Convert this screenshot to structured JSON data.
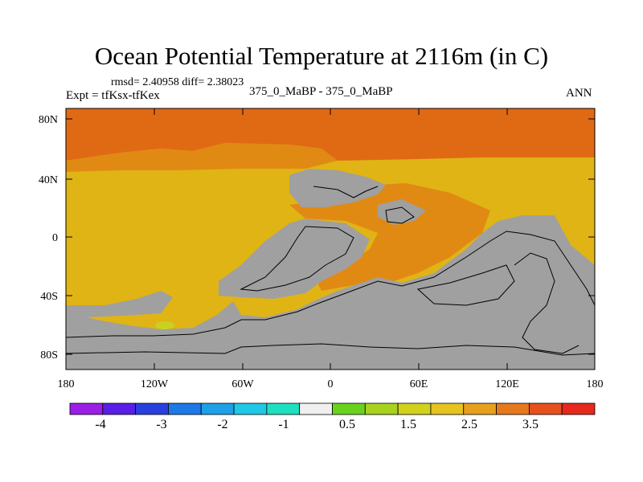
{
  "title": "Ocean Potential Temperature at 2116m (in C)",
  "stats": "rmsd= 2.40958 diff= 2.38023",
  "expt": "Expt = tfKsx-tfKex",
  "case": "375_0_MaBP - 375_0_MaBP",
  "season": "ANN",
  "lat_labels": [
    "80N",
    "40N",
    "0",
    "40S",
    "80S"
  ],
  "lon_labels": [
    "180",
    "120W",
    "60W",
    "0",
    "60E",
    "120E",
    "180"
  ],
  "colorbar": {
    "labels": [
      "-4",
      "-3",
      "-2",
      "-1",
      "0.5",
      "1.5",
      "2.5",
      "3.5"
    ],
    "colors": [
      "#9a1ee6",
      "#5a1ee6",
      "#2840e0",
      "#1e78e6",
      "#1ea0e6",
      "#1ec8e6",
      "#1ee0c0",
      "#f0f0f0",
      "#6ad21e",
      "#a8d21e",
      "#d2d21e",
      "#e6c31e",
      "#e6a01e",
      "#e6781e",
      "#e6501e",
      "#e6281e"
    ]
  },
  "map_colors": {
    "land": "#a0a0a0",
    "contour": "#000000",
    "warm_high": "#e06a14",
    "warm_mid": "#e08a14",
    "warm_base": "#e0b414",
    "light_green": "#c8d21e"
  }
}
